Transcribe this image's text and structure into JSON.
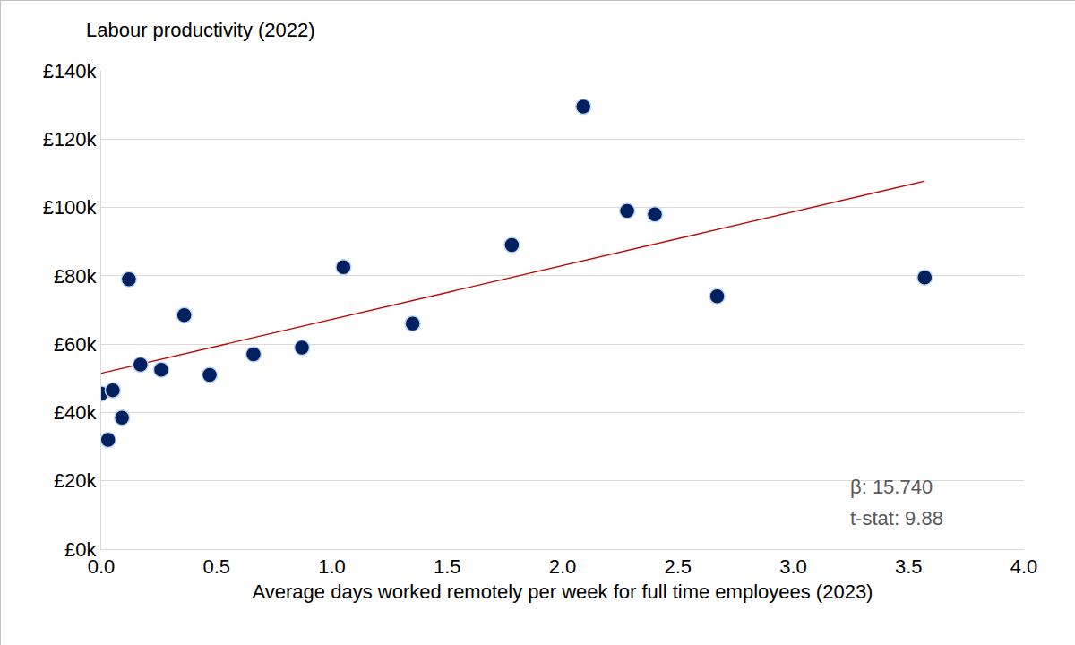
{
  "chart_data": {
    "type": "scatter",
    "title": "Labour productivity (2022)",
    "x_label": "Average days worked remotely per week for full time employees (2023)",
    "x": [
      0.0,
      0.03,
      0.05,
      0.09,
      0.12,
      0.17,
      0.26,
      0.36,
      0.47,
      0.66,
      0.87,
      1.05,
      1.35,
      1.78,
      2.09,
      2.28,
      2.4,
      2.67,
      3.57
    ],
    "values": [
      45500,
      32000,
      46500,
      38500,
      79000,
      54000,
      52500,
      68500,
      51000,
      57000,
      59000,
      82500,
      66000,
      89000,
      129500,
      99000,
      98000,
      74000,
      79500
    ],
    "color": "#002060",
    "marker": "circle",
    "trend_line": {
      "type": "line",
      "color": "#c00000",
      "line_style": "solid",
      "x": [
        0,
        3.57
      ],
      "values": [
        51500,
        107700
      ]
    },
    "annotations": [
      "β: 15.740",
      "t-stat: 9.88"
    ],
    "xlim": [
      0,
      4
    ],
    "xticks": [
      {
        "value": 0,
        "label": "0.0"
      },
      {
        "value": 0.5,
        "label": "0.5"
      },
      {
        "value": 1,
        "label": "1.0"
      },
      {
        "value": 1.5,
        "label": "1.5"
      },
      {
        "value": 2,
        "label": "2.0"
      },
      {
        "value": 2.5,
        "label": "2.5"
      },
      {
        "value": 3,
        "label": "3.0"
      },
      {
        "value": 3.5,
        "label": "3.5"
      },
      {
        "value": 4,
        "label": "4.0"
      }
    ],
    "ylim": [
      0,
      140000
    ],
    "yticks": [
      {
        "value": 0,
        "label": "£0k"
      },
      {
        "value": 20000,
        "label": "£20k"
      },
      {
        "value": 40000,
        "label": "£40k"
      },
      {
        "value": 60000,
        "label": "£60k"
      },
      {
        "value": 80000,
        "label": "£80k"
      },
      {
        "value": 100000,
        "label": "£100k"
      },
      {
        "value": 120000,
        "label": "£120k"
      },
      {
        "value": 140000,
        "label": "£140k"
      }
    ],
    "grid": true
  }
}
